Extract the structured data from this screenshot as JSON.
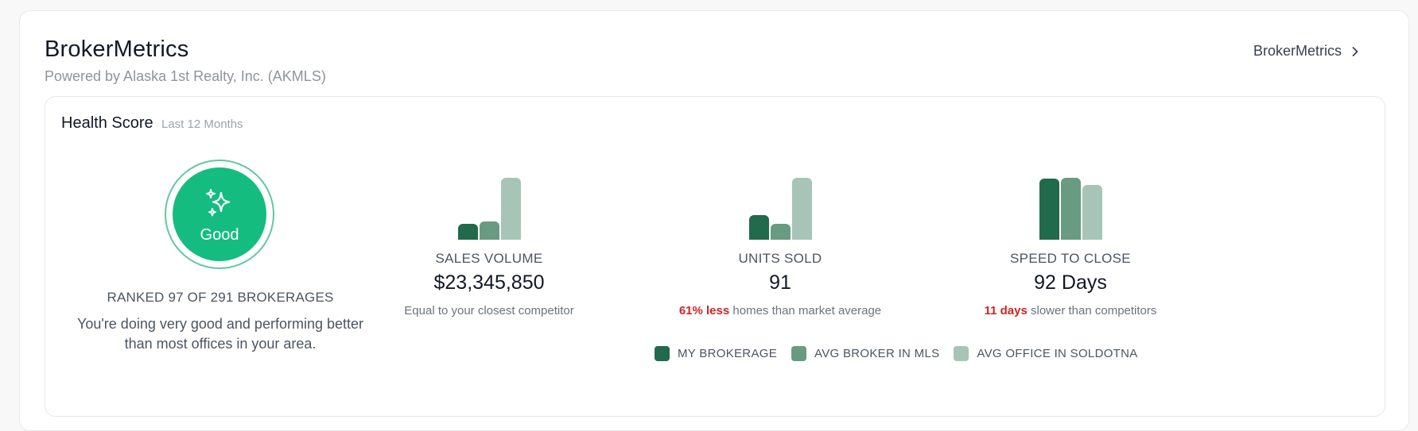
{
  "header": {
    "title": "BrokerMetrics",
    "subtitle": "Powered by Alaska 1st Realty, Inc. (AKMLS)",
    "link_label": "BrokerMetrics"
  },
  "health": {
    "title": "Health Score",
    "period": "Last 12 Months",
    "score_label": "Good",
    "score_icon": "sparkles-icon",
    "rank_text": "RANKED 97 OF 291 BROKERAGES",
    "description": "You're doing very good and performing better than most offices in your area."
  },
  "colors": {
    "my_brokerage": "#216a4c",
    "avg_broker_mls": "#689b82",
    "avg_office": "#a6c5b6",
    "score": "#14bd7f",
    "highlight": "#d22323"
  },
  "chart_data": [
    {
      "type": "bar",
      "title": "SALES VOLUME",
      "series": [
        {
          "name": "MY BROKERAGE",
          "value": 0.25
        },
        {
          "name": "AVG BROKER IN MLS",
          "value": 0.3
        },
        {
          "name": "AVG OFFICE IN SOLDOTNA",
          "value": 1.0
        }
      ]
    },
    {
      "type": "bar",
      "title": "UNITS SOLD",
      "series": [
        {
          "name": "MY BROKERAGE",
          "value": 0.4
        },
        {
          "name": "AVG BROKER IN MLS",
          "value": 0.25
        },
        {
          "name": "AVG OFFICE IN SOLDOTNA",
          "value": 1.0
        }
      ]
    },
    {
      "type": "bar",
      "title": "SPEED TO CLOSE",
      "series": [
        {
          "name": "MY BROKERAGE",
          "value": 0.99
        },
        {
          "name": "AVG BROKER IN MLS",
          "value": 1.0
        },
        {
          "name": "AVG OFFICE IN SOLDOTNA",
          "value": 0.88
        }
      ]
    }
  ],
  "metrics": [
    {
      "label": "SALES VOLUME",
      "value": "$23,345,850",
      "note_highlight": "",
      "note_text": "Equal to your closest competitor"
    },
    {
      "label": "UNITS SOLD",
      "value": "91",
      "note_highlight": "61% less",
      "note_text": " homes than market average"
    },
    {
      "label": "SPEED TO CLOSE",
      "value": "92 Days",
      "note_highlight": "11 days",
      "note_text": " slower than competitors"
    }
  ],
  "legend": [
    {
      "label": "MY BROKERAGE"
    },
    {
      "label": "AVG BROKER IN MLS"
    },
    {
      "label": "AVG OFFICE IN SOLDOTNA"
    }
  ]
}
